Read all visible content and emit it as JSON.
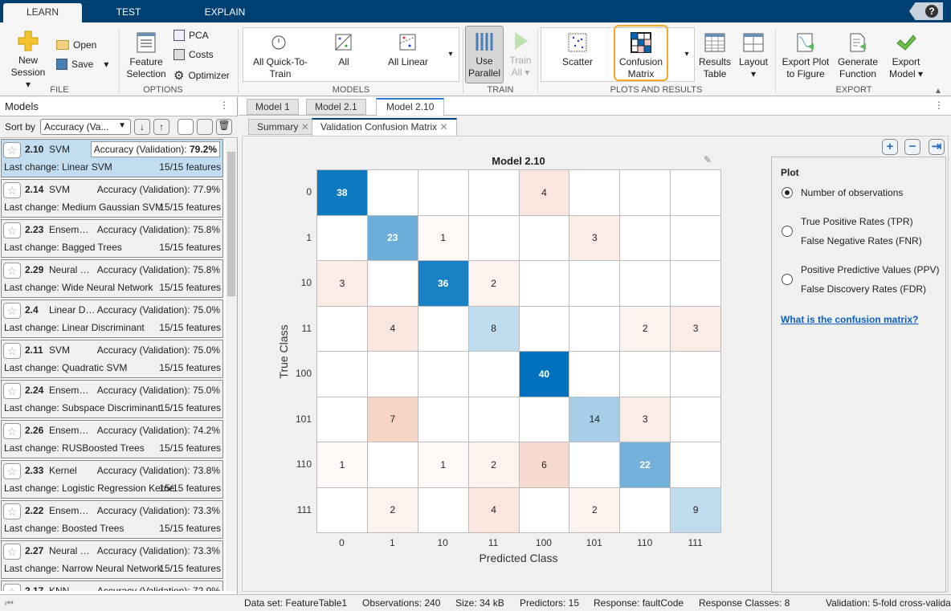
{
  "tabs": [
    "LEARN",
    "TEST",
    "EXPLAIN"
  ],
  "help_label": "?",
  "ribbon": {
    "file": {
      "label": "FILE",
      "new_session": [
        "New",
        "Session"
      ],
      "open": "Open",
      "save": "Save"
    },
    "options": {
      "label": "OPTIONS",
      "feature_selection": [
        "Feature",
        "Selection"
      ],
      "pca": "PCA",
      "costs": "Costs",
      "optimizer": "Optimizer"
    },
    "models": {
      "label": "MODELS",
      "items": [
        [
          "All Quick-To-",
          "Train"
        ],
        [
          "All",
          ""
        ],
        [
          "All Linear",
          ""
        ]
      ]
    },
    "train": {
      "label": "TRAIN",
      "use_parallel": [
        "Use",
        "Parallel"
      ],
      "train_all": [
        "Train",
        "All"
      ]
    },
    "plots": {
      "label": "PLOTS AND RESULTS",
      "scatter": "Scatter",
      "confusion": [
        "Confusion",
        "Matrix"
      ],
      "results_table": [
        "Results",
        "Table"
      ],
      "layout": "Layout"
    },
    "export": {
      "label": "EXPORT",
      "export_plot": [
        "Export Plot",
        "to Figure"
      ],
      "generate_function": [
        "Generate",
        "Function"
      ],
      "export_model": [
        "Export",
        "Model"
      ]
    }
  },
  "models_panel": {
    "title": "Models",
    "sort_label": "Sort by",
    "sort_value": "Accuracy (Va...",
    "items": [
      {
        "id": "2.10",
        "type": "SVM",
        "acc_label": "Accuracy (Validation):",
        "acc": "79.2%",
        "last": "Last change: Linear SVM",
        "features": "15/15 features",
        "selected": true
      },
      {
        "id": "2.14",
        "type": "SVM",
        "acc_label": "Accuracy (Validation):",
        "acc": "77.9%",
        "last": "Last change: Medium Gaussian SVM",
        "features": "15/15 features"
      },
      {
        "id": "2.23",
        "type": "Ensem…",
        "acc_label": "Accuracy (Validation):",
        "acc": "75.8%",
        "last": "Last change: Bagged Trees",
        "features": "15/15 features"
      },
      {
        "id": "2.29",
        "type": "Neural …",
        "acc_label": "Accuracy (Validation):",
        "acc": "75.8%",
        "last": "Last change: Wide Neural Network",
        "features": "15/15 features"
      },
      {
        "id": "2.4",
        "type": "Linear D…",
        "acc_label": "Accuracy (Validation):",
        "acc": "75.0%",
        "last": "Last change: Linear Discriminant",
        "features": "15/15 features"
      },
      {
        "id": "2.11",
        "type": "SVM",
        "acc_label": "Accuracy (Validation):",
        "acc": "75.0%",
        "last": "Last change: Quadratic SVM",
        "features": "15/15 features"
      },
      {
        "id": "2.24",
        "type": "Ensem…",
        "acc_label": "Accuracy (Validation):",
        "acc": "75.0%",
        "last": "Last change: Subspace Discriminant",
        "features": "15/15 features"
      },
      {
        "id": "2.26",
        "type": "Ensem…",
        "acc_label": "Accuracy (Validation):",
        "acc": "74.2%",
        "last": "Last change: RUSBoosted Trees",
        "features": "15/15 features"
      },
      {
        "id": "2.33",
        "type": "Kernel",
        "acc_label": "Accuracy (Validation):",
        "acc": "73.8%",
        "last": "Last change: Logistic Regression Kernel",
        "features": "15/15 features"
      },
      {
        "id": "2.22",
        "type": "Ensem…",
        "acc_label": "Accuracy (Validation):",
        "acc": "73.3%",
        "last": "Last change: Boosted Trees",
        "features": "15/15 features"
      },
      {
        "id": "2.27",
        "type": "Neural …",
        "acc_label": "Accuracy (Validation):",
        "acc": "73.3%",
        "last": "Last change: Narrow Neural Network",
        "features": "15/15 features"
      },
      {
        "id": "2.17",
        "type": "KNN",
        "acc_label": "Accuracy (Validation):",
        "acc": "72.9%",
        "last": "",
        "features": ""
      }
    ]
  },
  "doc_tabs": [
    "Model 1",
    "Model 2.1",
    "Model 2.10"
  ],
  "plot_tabs": [
    "Summary",
    "Validation Confusion Matrix"
  ],
  "chart_data": {
    "type": "heatmap",
    "title": "Model 2.10",
    "xlabel": "Predicted Class",
    "ylabel": "True Class",
    "classes": [
      "0",
      "1",
      "10",
      "11",
      "100",
      "101",
      "110",
      "111"
    ],
    "matrix": [
      [
        38,
        0,
        0,
        0,
        4,
        0,
        0,
        0
      ],
      [
        0,
        23,
        1,
        0,
        0,
        3,
        0,
        0
      ],
      [
        3,
        0,
        36,
        2,
        0,
        0,
        0,
        0
      ],
      [
        0,
        4,
        0,
        8,
        0,
        0,
        2,
        3
      ],
      [
        0,
        0,
        0,
        0,
        40,
        0,
        0,
        0
      ],
      [
        0,
        7,
        0,
        0,
        0,
        14,
        3,
        0
      ],
      [
        1,
        0,
        1,
        2,
        6,
        0,
        22,
        0
      ],
      [
        0,
        2,
        0,
        4,
        0,
        2,
        0,
        9
      ]
    ],
    "diag_color": "#0072bd",
    "offdiag_color": "#d95319"
  },
  "plot_options": {
    "title": "Plot",
    "options": [
      "Number of observations",
      [
        "True Positive Rates (TPR)",
        "False Negative Rates (FNR)"
      ],
      [
        "Positive Predictive Values (PPV)",
        "False Discovery Rates (FDR)"
      ]
    ],
    "selected": 0,
    "link": "What is the confusion matrix?"
  },
  "status": [
    "Data set: FeatureTable1",
    "Observations: 240",
    "Size: 34 kB",
    "Predictors: 15",
    "Response: faultCode",
    "Response Classes: 8",
    "Validation: 5-fold cross-valida"
  ]
}
